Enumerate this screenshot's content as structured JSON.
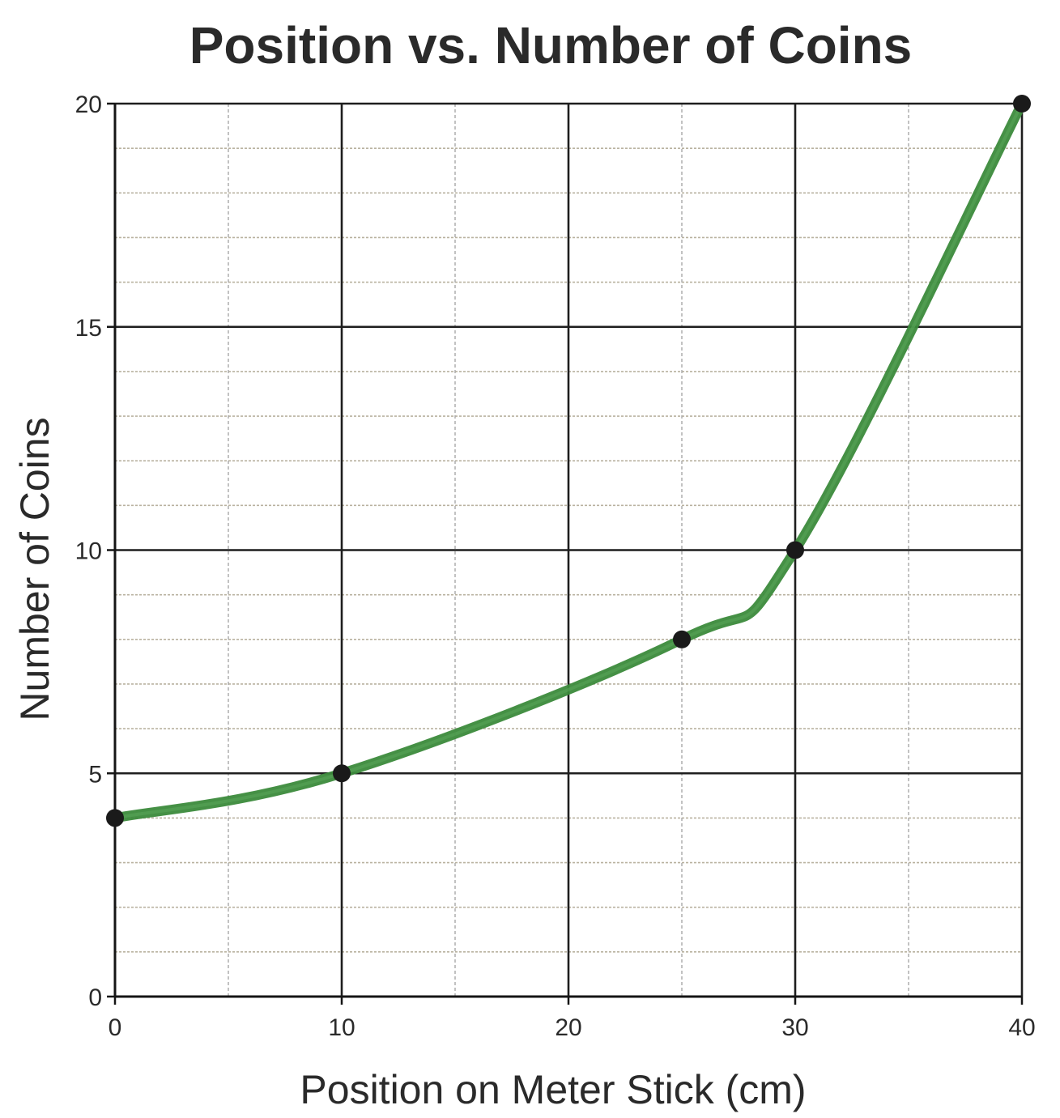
{
  "chart_data": {
    "type": "line",
    "title": "Position vs. Number of Coins",
    "xlabel": "Position on Meter Stick (cm)",
    "ylabel": "Number of Coins",
    "xlim": [
      0,
      40
    ],
    "ylim": [
      0,
      20
    ],
    "x_ticks": [
      "0",
      "10",
      "20",
      "30",
      "40"
    ],
    "y_ticks": [
      "0",
      "5",
      "10",
      "15",
      "20"
    ],
    "x_tick_values": [
      0,
      10,
      20,
      30,
      40
    ],
    "y_tick_values": [
      0,
      5,
      10,
      15,
      20
    ],
    "grid": true,
    "series": [
      {
        "x": [
          0,
          10,
          25,
          30,
          40
        ],
        "y": [
          4,
          5,
          8,
          10,
          20
        ],
        "color": "#3b8a3b",
        "marker_color": "#1a1a1a"
      }
    ]
  }
}
